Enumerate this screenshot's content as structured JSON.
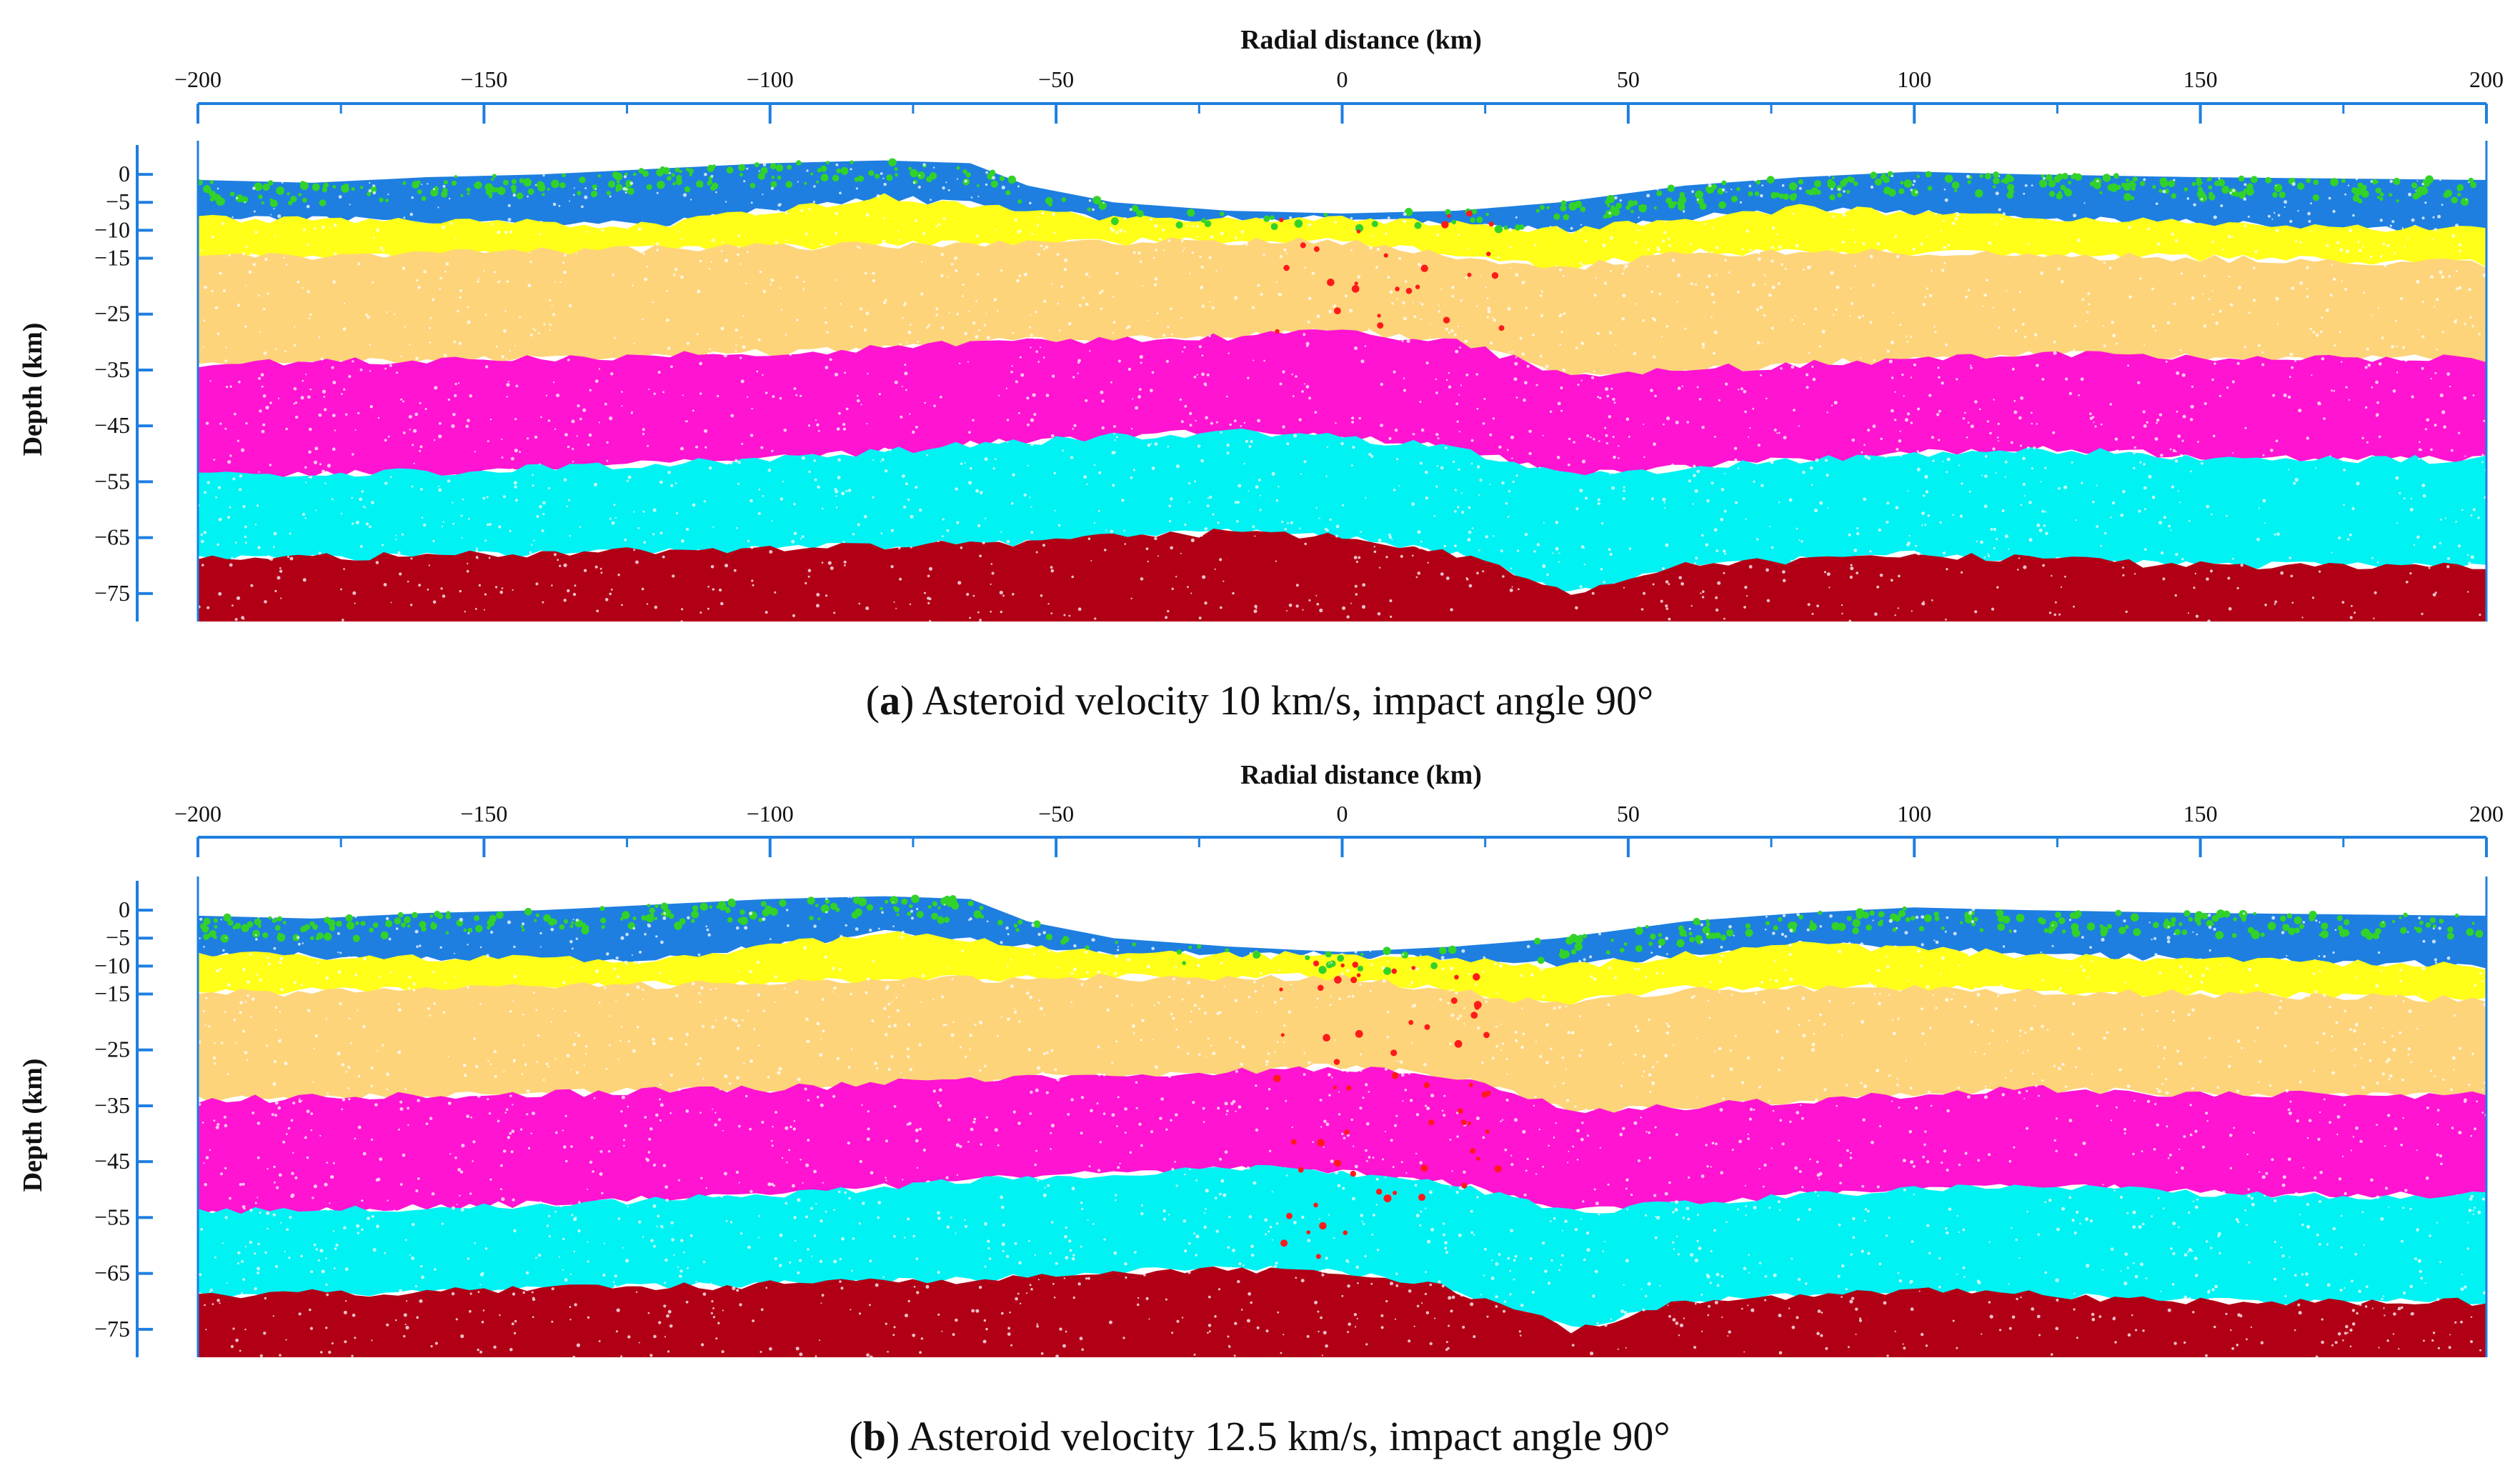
{
  "colors": {
    "axis": "#1e7fe0",
    "layers": [
      "#1e7fe0",
      "#ffff1a",
      "#fdd47a",
      "#ff14d2",
      "#00f2f2",
      "#b10016"
    ],
    "regolith_green": "#32d22a",
    "projectile": "#ff1a1a"
  },
  "chart_data": [
    {
      "id": "a",
      "type": "scatter",
      "title": "Radial distance (km)",
      "xlabel": "Radial distance (km)",
      "ylabel": "Depth (km)",
      "xlim": [
        -200,
        200
      ],
      "ylim": [
        -80,
        5
      ],
      "x_ticks": [
        "-200",
        "-150",
        "-100",
        "-50",
        "0",
        "50",
        "100",
        "150",
        "200"
      ],
      "x_tick_values": [
        -200,
        -150,
        -100,
        -50,
        0,
        50,
        100,
        150,
        200
      ],
      "y_ticks": [
        "0",
        "-5",
        "-10",
        "-15",
        "-25",
        "-35",
        "-45",
        "-55",
        "-65",
        "-75"
      ],
      "y_tick_values": [
        0,
        -5,
        -10,
        -15,
        -25,
        -35,
        -45,
        -55,
        -65,
        -75
      ],
      "caption_letter": "a",
      "caption_text": "Asteroid velocity 10 km/s, impact angle 90°",
      "velocity_km_s": 10,
      "impact_angle_deg": 90,
      "surface_profile": {
        "x": [
          -200,
          -180,
          -160,
          -140,
          -120,
          -100,
          -80,
          -65,
          -55,
          -40,
          -20,
          0,
          20,
          38,
          60,
          80,
          100,
          120,
          150,
          200
        ],
        "y": [
          -1,
          -1.5,
          -0.5,
          0,
          1,
          2,
          2.5,
          2,
          -2,
          -5,
          -6.5,
          -7,
          -6.5,
          -5,
          -2,
          -0.5,
          0.5,
          0,
          -0.5,
          -1
        ]
      },
      "layer_bottoms": [
        {
          "name": "upper crust blue",
          "x": [
            -200,
            -120,
            -80,
            -40,
            0,
            40,
            80,
            120,
            160,
            200
          ],
          "y": [
            -8,
            -9,
            -4,
            -8,
            -8,
            -10,
            -6,
            -8,
            -9,
            -10
          ]
        },
        {
          "name": "yellow",
          "x": [
            -200,
            -150,
            -100,
            -50,
            0,
            38,
            60,
            100,
            150,
            200
          ],
          "y": [
            -15,
            -14,
            -13,
            -12,
            -12,
            -17,
            -14,
            -14,
            -15,
            -16
          ]
        },
        {
          "name": "light orange",
          "x": [
            -200,
            -150,
            -100,
            -60,
            -20,
            0,
            20,
            40,
            80,
            120,
            160,
            200
          ],
          "y": [
            -34,
            -33,
            -32,
            -30,
            -29,
            -28,
            -30,
            -36,
            -34,
            -32,
            -33,
            -33
          ]
        },
        {
          "name": "magenta",
          "x": [
            -200,
            -150,
            -100,
            -60,
            -20,
            0,
            20,
            40,
            80,
            120,
            160,
            200
          ],
          "y": [
            -54,
            -53,
            -51,
            -48,
            -46,
            -47,
            -49,
            -54,
            -51,
            -49,
            -51,
            -51
          ]
        },
        {
          "name": "cyan",
          "x": [
            -200,
            -150,
            -100,
            -60,
            -20,
            0,
            20,
            40,
            60,
            100,
            150,
            200
          ],
          "y": [
            -69,
            -68,
            -67,
            -66,
            -64,
            -65,
            -68,
            -75,
            -70,
            -68,
            -70,
            -70
          ]
        }
      ]
    },
    {
      "id": "b",
      "type": "scatter",
      "title": "Radial distance (km)",
      "xlabel": "Radial distance (km)",
      "ylabel": "Depth (km)",
      "xlim": [
        -200,
        200
      ],
      "ylim": [
        -80,
        5
      ],
      "x_ticks": [
        "-200",
        "-150",
        "-100",
        "-50",
        "0",
        "50",
        "100",
        "150",
        "200"
      ],
      "x_tick_values": [
        -200,
        -150,
        -100,
        -50,
        0,
        50,
        100,
        150,
        200
      ],
      "y_ticks": [
        "0",
        "-5",
        "-10",
        "-15",
        "-25",
        "-35",
        "-45",
        "-55",
        "-65",
        "-75"
      ],
      "y_tick_values": [
        0,
        -5,
        -10,
        -15,
        -25,
        -35,
        -45,
        -55,
        -65,
        -75
      ],
      "caption_letter": "b",
      "caption_text": "Asteroid velocity 12.5 km/s, impact angle 90°",
      "velocity_km_s": 12.5,
      "impact_angle_deg": 90,
      "surface_profile": {
        "x": [
          -200,
          -180,
          -160,
          -140,
          -120,
          -100,
          -80,
          -65,
          -55,
          -40,
          -20,
          0,
          20,
          38,
          60,
          80,
          100,
          120,
          150,
          200
        ],
        "y": [
          -1,
          -1.5,
          -0.5,
          0,
          1,
          2,
          2.5,
          2,
          -2,
          -5,
          -6.5,
          -7.5,
          -6.5,
          -5,
          -2,
          -0.5,
          0.5,
          0,
          -0.5,
          -1
        ]
      },
      "layer_bottoms": [
        {
          "name": "upper crust blue",
          "x": [
            -200,
            -120,
            -80,
            -40,
            0,
            40,
            80,
            120,
            160,
            200
          ],
          "y": [
            -8,
            -9,
            -4,
            -8,
            -8,
            -10,
            -6,
            -8,
            -9,
            -10
          ]
        },
        {
          "name": "yellow",
          "x": [
            -200,
            -150,
            -100,
            -50,
            0,
            38,
            60,
            100,
            150,
            200
          ],
          "y": [
            -15,
            -14,
            -13,
            -12,
            -12,
            -17,
            -14,
            -14,
            -15,
            -16
          ]
        },
        {
          "name": "light orange",
          "x": [
            -200,
            -150,
            -100,
            -60,
            -20,
            0,
            20,
            40,
            80,
            120,
            160,
            200
          ],
          "y": [
            -34,
            -33,
            -32,
            -30,
            -29,
            -28,
            -30,
            -36,
            -34,
            -32,
            -33,
            -33
          ]
        },
        {
          "name": "magenta",
          "x": [
            -200,
            -150,
            -100,
            -60,
            -20,
            0,
            20,
            40,
            80,
            120,
            160,
            200
          ],
          "y": [
            -54,
            -53,
            -51,
            -48,
            -46,
            -47,
            -49,
            -54,
            -51,
            -49,
            -51,
            -51
          ]
        },
        {
          "name": "cyan",
          "x": [
            -200,
            -150,
            -100,
            -60,
            -20,
            0,
            20,
            40,
            60,
            100,
            150,
            200
          ],
          "y": [
            -69,
            -68,
            -67,
            -66,
            -64,
            -65,
            -68,
            -75,
            -70,
            -68,
            -70,
            -70
          ]
        }
      ]
    }
  ]
}
